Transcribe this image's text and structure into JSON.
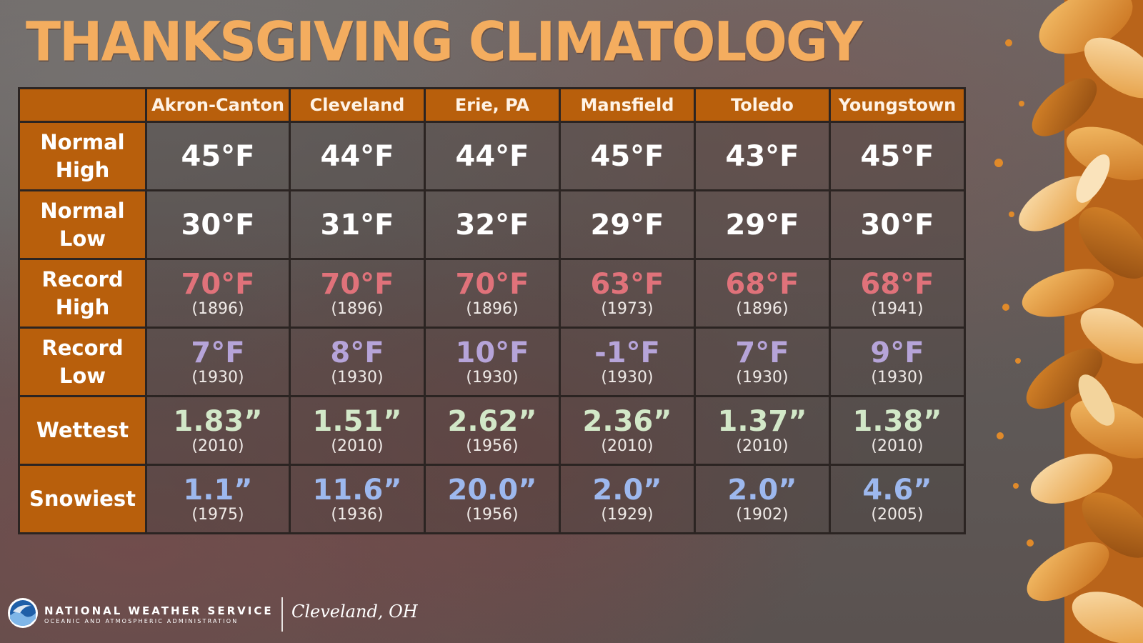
{
  "title": "THANKSGIVING CLIMATOLOGY",
  "colors": {
    "header_bg": "#b85f0c",
    "record_high": "#e0727a",
    "record_low": "#b6a4d9",
    "wettest": "#d2e8c8",
    "snowiest": "#9db8ee"
  },
  "chart_data": {
    "type": "table",
    "columns": [
      "",
      "Akron-Canton",
      "Cleveland",
      "Erie, PA",
      "Mansfield",
      "Toledo",
      "Youngstown"
    ],
    "rows": [
      {
        "label_lines": [
          "Normal",
          "High"
        ],
        "values": [
          "45°F",
          "44°F",
          "44°F",
          "45°F",
          "43°F",
          "45°F"
        ]
      },
      {
        "label_lines": [
          "Normal",
          "Low"
        ],
        "values": [
          "30°F",
          "31°F",
          "32°F",
          "29°F",
          "29°F",
          "30°F"
        ]
      },
      {
        "label_lines": [
          "Record",
          "High"
        ],
        "values": [
          "70°F",
          "70°F",
          "70°F",
          "63°F",
          "68°F",
          "68°F"
        ],
        "years": [
          "(1896)",
          "(1896)",
          "(1896)",
          "(1973)",
          "(1896)",
          "(1941)"
        ]
      },
      {
        "label_lines": [
          "Record",
          "Low"
        ],
        "values": [
          "7°F",
          "8°F",
          "10°F",
          "-1°F",
          "7°F",
          "9°F"
        ],
        "years": [
          "(1930)",
          "(1930)",
          "(1930)",
          "(1930)",
          "(1930)",
          "(1930)"
        ]
      },
      {
        "label_lines": [
          "Wettest"
        ],
        "values": [
          "1.83”",
          "1.51”",
          "2.62”",
          "2.36”",
          "1.37”",
          "1.38”"
        ],
        "years": [
          "(2010)",
          "(2010)",
          "(1956)",
          "(2010)",
          "(2010)",
          "(2010)"
        ]
      },
      {
        "label_lines": [
          "Snowiest"
        ],
        "values": [
          "1.1”",
          "11.6”",
          "20.0”",
          "2.0”",
          "2.0”",
          "4.6”"
        ],
        "years": [
          "(1975)",
          "(1936)",
          "(1956)",
          "(1929)",
          "(1902)",
          "(2005)"
        ]
      }
    ]
  },
  "footer": {
    "agency": "NATIONAL WEATHER SERVICE",
    "parent": "OCEANIC AND ATMOSPHERIC ADMINISTRATION",
    "office": "Cleveland, OH",
    "logo_icon": "noaa-logo-icon"
  },
  "decoration_icon": "autumn-leaves-icon"
}
